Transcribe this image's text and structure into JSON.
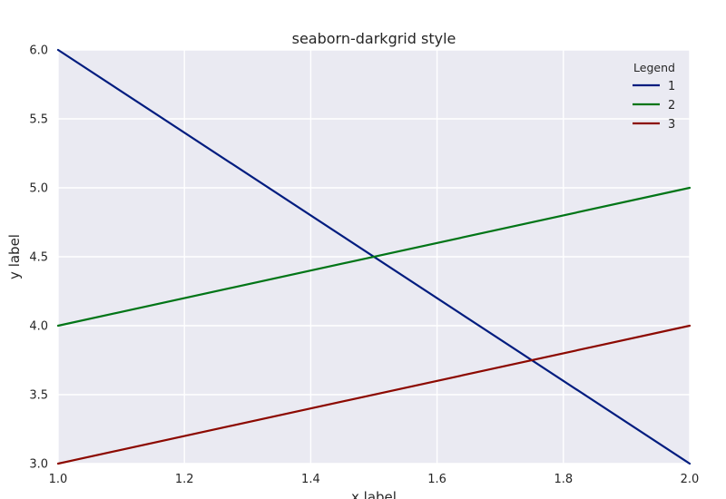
{
  "chart_data": {
    "type": "line",
    "style": "seaborn-darkgrid",
    "title": "seaborn-darkgrid style",
    "xlabel": "x label",
    "ylabel": "y label",
    "xlim": [
      1.0,
      2.0
    ],
    "ylim": [
      3.0,
      6.0
    ],
    "xticks": [
      "1.0",
      "1.2",
      "1.4",
      "1.6",
      "1.8",
      "2.0"
    ],
    "yticks": [
      "3.0",
      "3.5",
      "4.0",
      "4.5",
      "5.0",
      "5.5",
      "6.0"
    ],
    "grid": true,
    "legend": {
      "title": "Legend",
      "placement": "top-right"
    },
    "background_color": "#eaeaf2",
    "grid_color": "#ffffff",
    "series": [
      {
        "name": "1",
        "color": "#001c7f",
        "x": [
          1.0,
          2.0
        ],
        "y": [
          6.0,
          3.0
        ]
      },
      {
        "name": "2",
        "color": "#017517",
        "x": [
          1.0,
          2.0
        ],
        "y": [
          4.0,
          5.0
        ]
      },
      {
        "name": "3",
        "color": "#8c0900",
        "x": [
          1.0,
          2.0
        ],
        "y": [
          3.0,
          4.0
        ]
      }
    ]
  }
}
